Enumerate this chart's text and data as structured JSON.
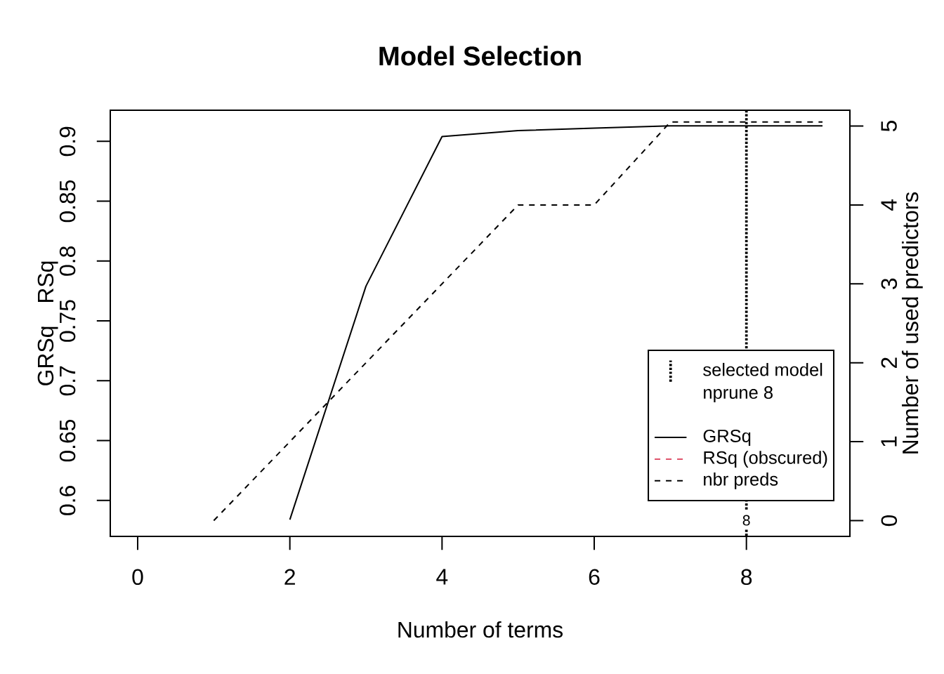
{
  "chart_data": {
    "type": "line",
    "title": "Model Selection",
    "xlabel": "Number of terms",
    "ylabel": "GRSq   RSq",
    "y2label": "Number of used predictors",
    "x": [
      1,
      2,
      3,
      4,
      5,
      6,
      7,
      8,
      9
    ],
    "series": [
      {
        "name": "GRSq",
        "color": "#000000",
        "line_style": "solid",
        "values": [
          null,
          0.584,
          0.779,
          0.904,
          0.909,
          0.911,
          0.913,
          0.913,
          0.913
        ]
      },
      {
        "name": "RSq (obscured)",
        "color": "#df536b",
        "line_style": "dashed",
        "values": [
          null,
          null,
          null,
          null,
          null,
          null,
          null,
          null,
          null
        ]
      },
      {
        "name": "nbr preds",
        "color": "#000000",
        "line_style": "dashed",
        "axis": "y2",
        "values": [
          0,
          1,
          2,
          3,
          4,
          4,
          5.05,
          5.05,
          5.05
        ]
      }
    ],
    "xlim": [
      -0.36,
      9.36
    ],
    "xticks": [
      0,
      2,
      4,
      6,
      8
    ],
    "ylim": [
      0.57,
      0.926
    ],
    "yticks": [
      0.6,
      0.65,
      0.7,
      0.75,
      0.8,
      0.85,
      0.9
    ],
    "y2lim": [
      -0.2,
      5.2
    ],
    "y2ticks": [
      0,
      1,
      2,
      3,
      4,
      5
    ],
    "ref_lines": [
      {
        "axis": "x",
        "value": 8,
        "label": "8",
        "line_style": "dotted",
        "color": "#000000"
      }
    ],
    "annotations": [
      "selected model",
      "nprune 8"
    ],
    "legend": "bottom right"
  }
}
